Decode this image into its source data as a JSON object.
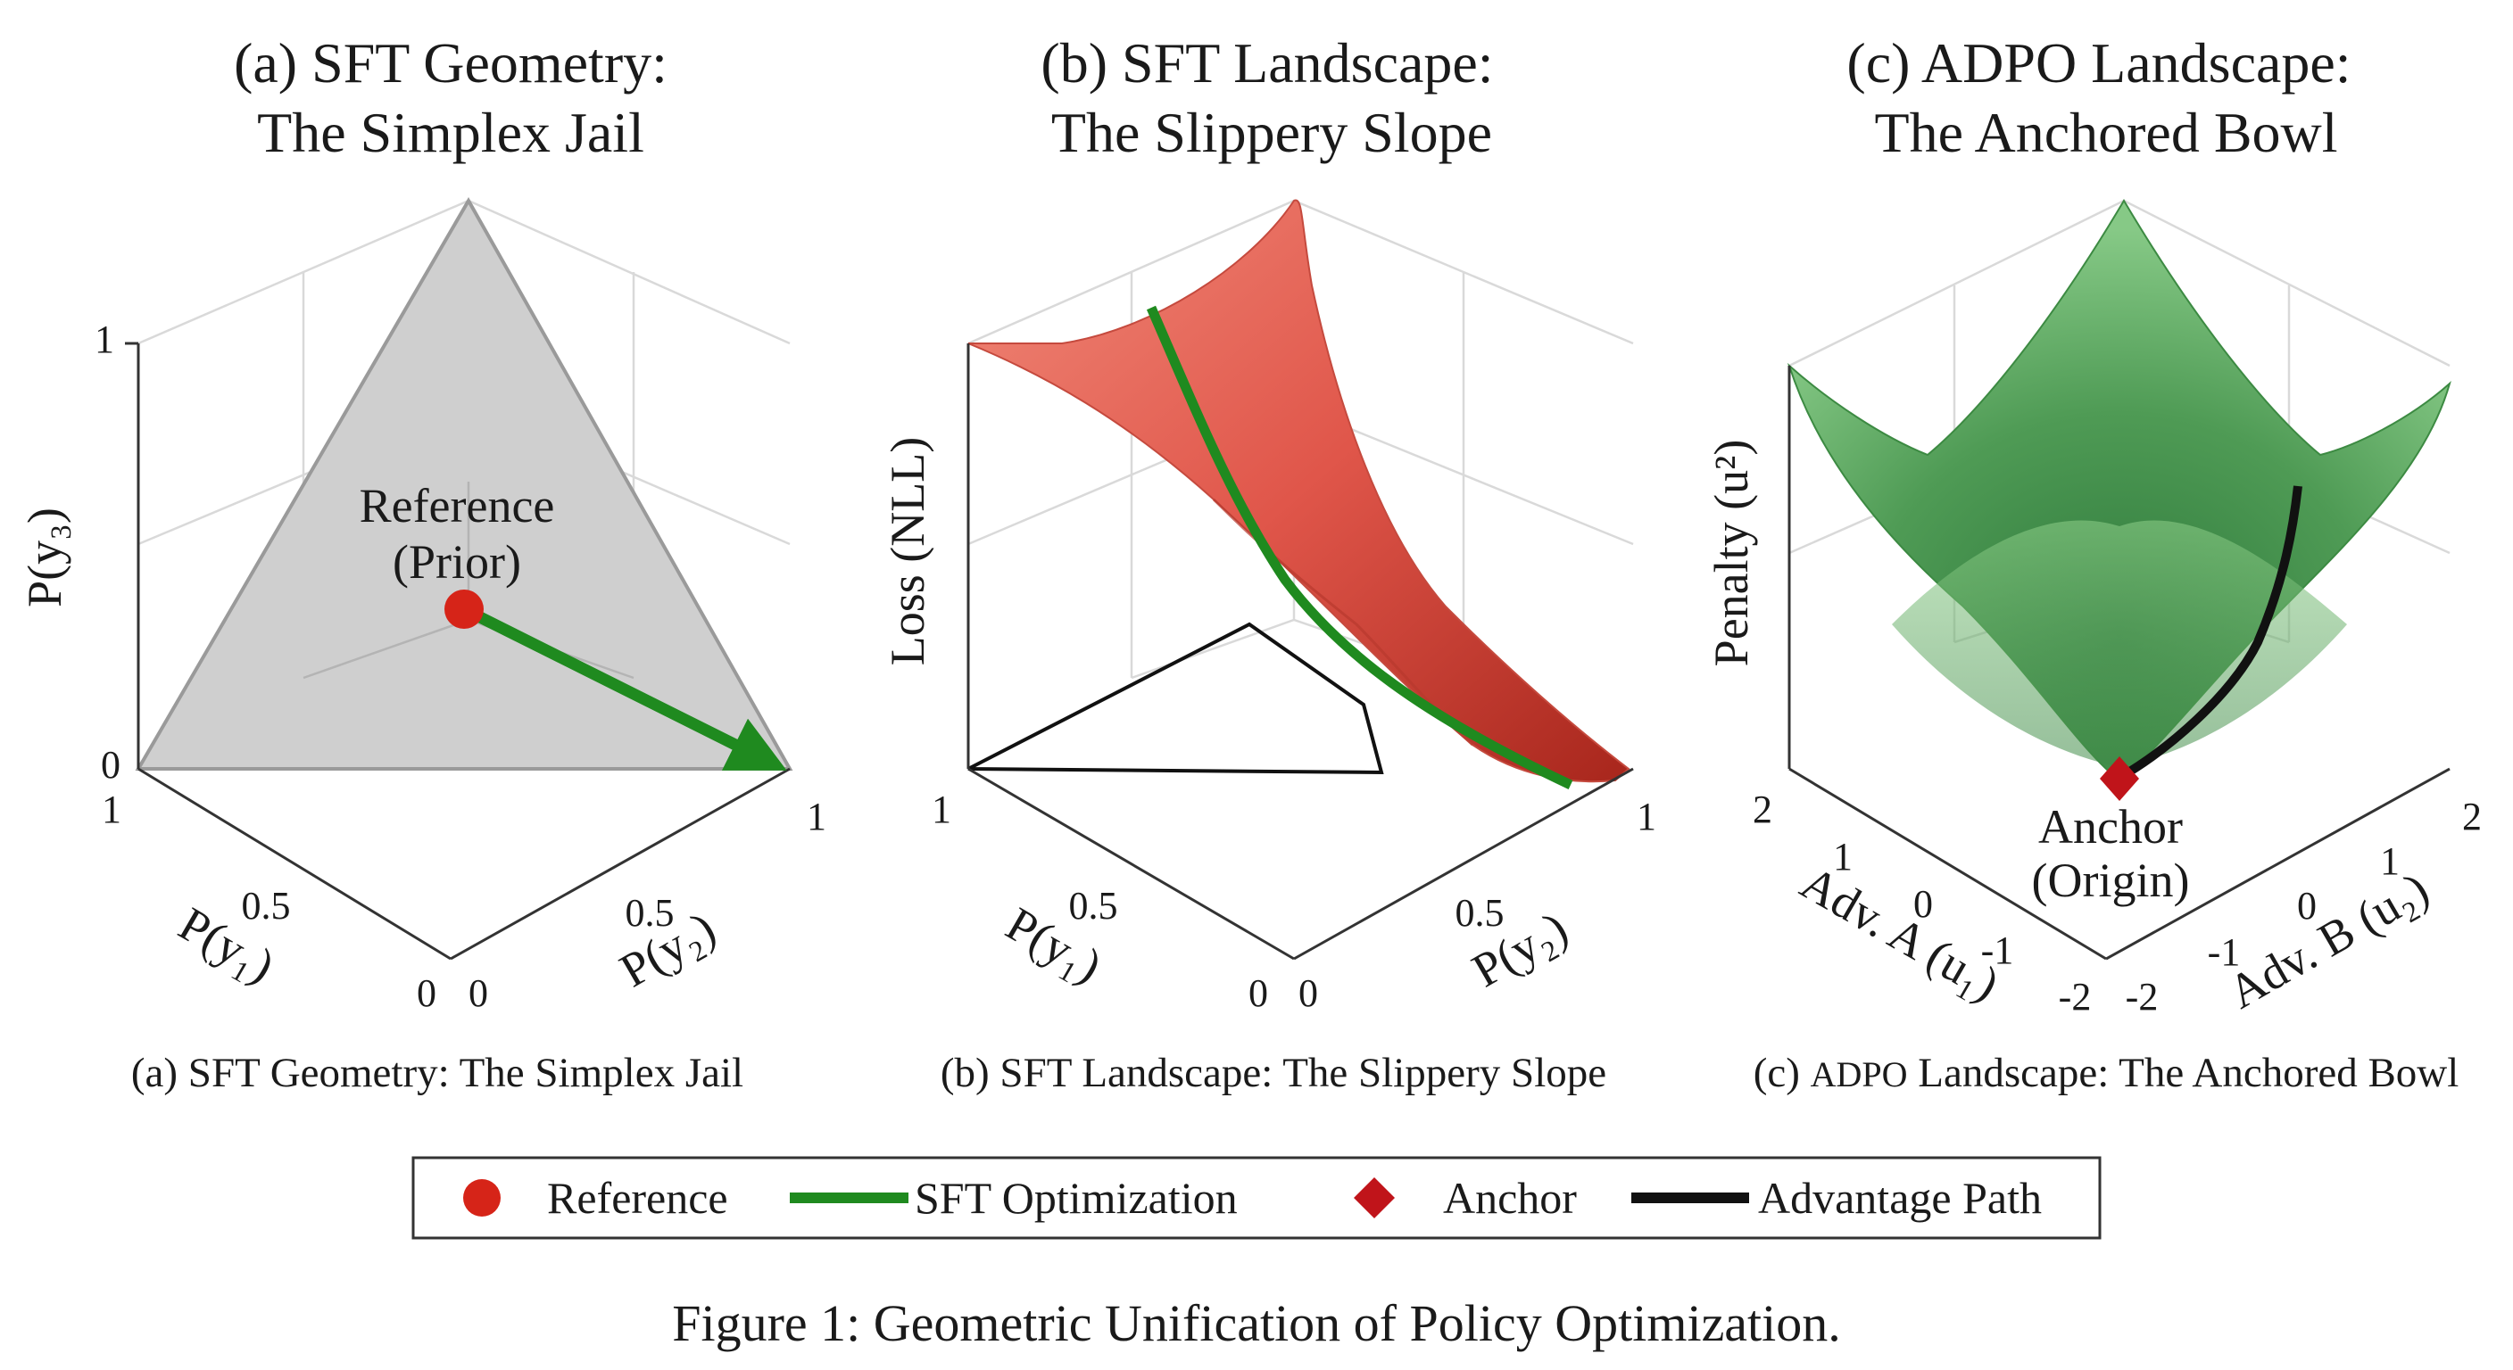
{
  "figure_caption": "Figure 1: Geometric Unification of Policy Optimization.",
  "colors": {
    "reference": "#d62418",
    "sft_path": "#1f8a1f",
    "anchor": "#c0141a",
    "advantage_path": "#111111",
    "simplex_fill": "#cfcfcf",
    "sft_surface": "#e0564a",
    "adpo_surface": "#5aa85a"
  },
  "legend": {
    "reference": "Reference",
    "sft": "SFT Optimization",
    "anchor": "Anchor",
    "advantage": "Advantage Path"
  },
  "chart_data": [
    {
      "type": "3d-simplex",
      "title_line1": "(a) SFT Geometry:",
      "title_line2": "The Simplex Jail",
      "subcaption": "(a) SFT Geometry: The Simplex Jail",
      "xlabel": "P(y₁)",
      "ylabel": "P(y₂)",
      "zlabel": "P(y₃)",
      "xlim": [
        0,
        1
      ],
      "ylim": [
        0,
        1
      ],
      "zlim": [
        0,
        1
      ],
      "xticks": [
        "1",
        "0.5",
        "0"
      ],
      "yticks": [
        "0",
        "0.5",
        "1"
      ],
      "zticks": [
        "0",
        "1"
      ],
      "simplex_vertices": [
        [
          1,
          0,
          0
        ],
        [
          0,
          1,
          0
        ],
        [
          0,
          0,
          1
        ]
      ],
      "reference_point": [
        0.333,
        0.333,
        0.333
      ],
      "sft_arrow_end": [
        0,
        1,
        0
      ],
      "annotation_line1": "Reference",
      "annotation_line2": "(Prior)"
    },
    {
      "type": "3d-surface",
      "title_line1": "(b) SFT Landscape:",
      "title_line2": "The Slippery Slope",
      "subcaption": "(b) SFT Landscape: The Slippery Slope",
      "xlabel": "P(y₁)",
      "ylabel": "P(y₂)",
      "zlabel": "Loss (NLL)",
      "xlim": [
        0,
        1
      ],
      "ylim": [
        0,
        1
      ],
      "xticks": [
        "1",
        "0.5",
        "0"
      ],
      "yticks": [
        "0",
        "0.5",
        "1"
      ],
      "surface": "-log P(y₂)",
      "path": "SFT optimization along the loss surface toward P(y₂) = 1"
    },
    {
      "type": "3d-surface",
      "title_line1": "(c) ADPO Landscape:",
      "title_line2": "The Anchored Bowl",
      "subcaption_prefix": "(c) ",
      "subcaption_abbr": "ADPO",
      "subcaption_suffix": " Landscape: The Anchored Bowl",
      "xlabel": "Adv. A (u₁)",
      "ylabel": "Adv. B (u₂)",
      "zlabel": "Penalty (u²)",
      "xlim": [
        -2,
        2
      ],
      "ylim": [
        -2,
        2
      ],
      "xticks": [
        "2",
        "1",
        "0",
        "-1",
        "-2"
      ],
      "yticks": [
        "-2",
        "-1",
        "0",
        "1",
        "2"
      ],
      "surface": "u₁² + u₂²",
      "anchor_point": [
        0,
        0,
        0
      ],
      "annotation_line1": "Anchor",
      "annotation_line2": "(Origin)"
    }
  ]
}
